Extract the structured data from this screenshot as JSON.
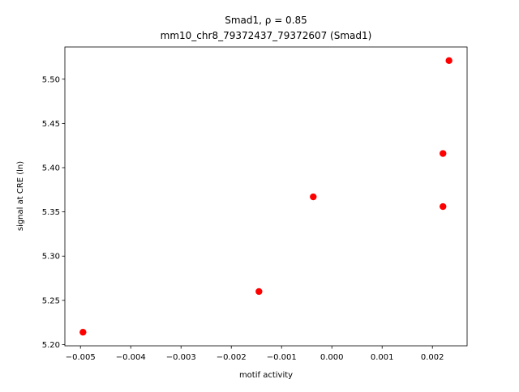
{
  "chart_data": {
    "type": "scatter",
    "title": "Smad1, ρ = 0.85",
    "subtitle": "mm10_chr8_79372437_79372607 (Smad1)",
    "x_label": "motif activity",
    "y_label": "signal at CRE (ln)",
    "x": [
      -0.00495,
      -0.00145,
      -0.00037,
      0.00221,
      0.00221,
      0.00233
    ],
    "values": [
      5.214,
      5.26,
      5.367,
      5.356,
      5.416,
      5.521
    ],
    "color": "#ff0000",
    "xlim": [
      -0.00531,
      0.00269
    ],
    "ylim": [
      5.1986,
      5.5364
    ],
    "xticks": [
      {
        "value": -0.005,
        "label": "−0.005"
      },
      {
        "value": -0.004,
        "label": "−0.004"
      },
      {
        "value": -0.003,
        "label": "−0.003"
      },
      {
        "value": -0.002,
        "label": "−0.002"
      },
      {
        "value": -0.001,
        "label": "−0.001"
      },
      {
        "value": 0,
        "label": "0.000"
      },
      {
        "value": 0.001,
        "label": "0.001"
      },
      {
        "value": 0.002,
        "label": "0.002"
      }
    ],
    "yticks": [
      {
        "value": 5.2,
        "label": "5.20"
      },
      {
        "value": 5.25,
        "label": "5.25"
      },
      {
        "value": 5.3,
        "label": "5.30"
      },
      {
        "value": 5.35,
        "label": "5.35"
      },
      {
        "value": 5.4,
        "label": "5.40"
      },
      {
        "value": 5.45,
        "label": "5.45"
      },
      {
        "value": 5.5,
        "label": "5.50"
      }
    ],
    "grid": false
  }
}
